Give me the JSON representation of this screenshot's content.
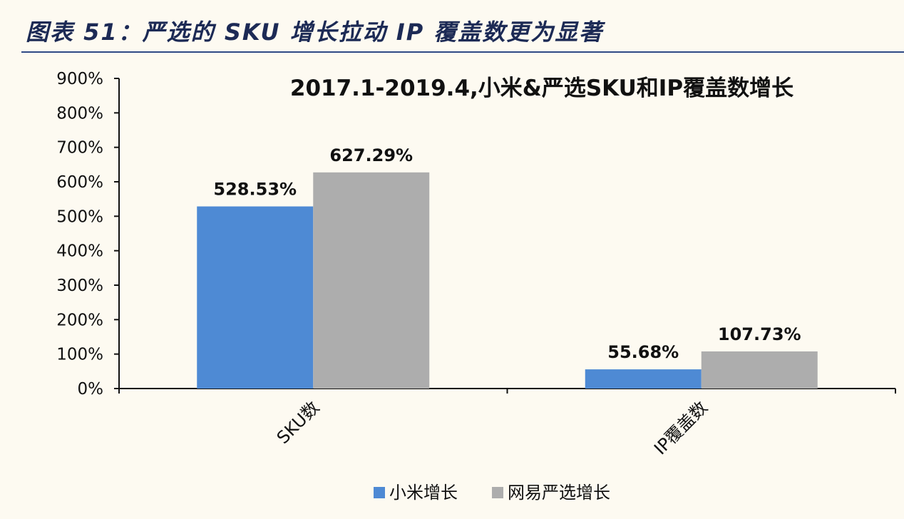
{
  "caption": "图表 51：严选的 SKU 增长拉动 IP 覆盖数更为显著",
  "chart_data": {
    "type": "bar",
    "title": "2017.1-2019.4,小米&严选SKU和IP覆盖数增长",
    "categories": [
      "SKU数",
      "IP覆盖数"
    ],
    "series": [
      {
        "name": "小米增长",
        "values": [
          528.53,
          55.68
        ],
        "labels": [
          "528.53%",
          "55.68%"
        ],
        "color": "#4e8ad4"
      },
      {
        "name": "网易严选增长",
        "values": [
          627.29,
          107.73
        ],
        "labels": [
          "627.29%",
          "107.73%"
        ],
        "color": "#adadad"
      }
    ],
    "ylim": [
      0,
      900
    ],
    "yticks": [
      "0%",
      "100%",
      "200%",
      "300%",
      "400%",
      "500%",
      "600%",
      "700%",
      "800%",
      "900%"
    ],
    "grid": false,
    "legend": "bottom"
  }
}
